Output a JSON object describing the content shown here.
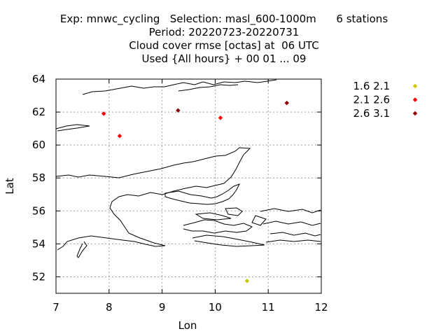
{
  "chart_data": {
    "type": "scatter",
    "title_lines": [
      "Exp: mnwc_cycling   Selection: masl_600-1000m      6 stations",
      "Period: 20220723-20220731",
      "Cloud cover rmse [octas] at  06 UTC",
      "Used {All hours} + 00 01 ... 09"
    ],
    "xlabel": "Lon",
    "ylabel": "Lat",
    "xlim": [
      7,
      12
    ],
    "ylim": [
      51,
      64
    ],
    "xticks": [
      7,
      8,
      9,
      10,
      11,
      12
    ],
    "yticks": [
      52,
      54,
      56,
      58,
      60,
      62,
      64
    ],
    "grid": true,
    "legend_position": "outside-right-top",
    "series": [
      {
        "name": "1.6 2.1",
        "color": "#c8c800",
        "points": [
          {
            "x": 10.6,
            "y": 51.75
          }
        ]
      },
      {
        "name": "2.1 2.6",
        "color": "#ff0000",
        "points": [
          {
            "x": 7.9,
            "y": 61.9
          },
          {
            "x": 8.2,
            "y": 60.55
          },
          {
            "x": 10.1,
            "y": 61.65
          }
        ]
      },
      {
        "name": "2.6 3.1",
        "color": "#8b0000",
        "points": [
          {
            "x": 9.3,
            "y": 62.1
          },
          {
            "x": 11.35,
            "y": 62.55
          }
        ]
      }
    ]
  }
}
